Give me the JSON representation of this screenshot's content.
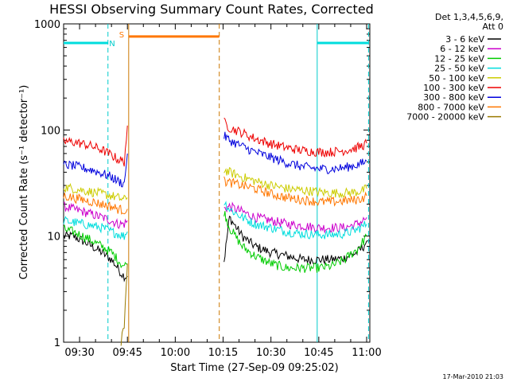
{
  "chart_data": {
    "type": "line",
    "title": "HESSI Observing Summary Count Rates, Corrected",
    "xlabel": "Start Time (27-Sep-09 09:25:02)",
    "ylabel": "Corrected Count Rate (s⁻¹ detector⁻¹)",
    "x_unit": "minutes after 09:25:02",
    "xlim": [
      0,
      96
    ],
    "ylim": [
      1,
      1000
    ],
    "yscale": "log",
    "x_ticks": [
      {
        "x": 5,
        "label": "09:30"
      },
      {
        "x": 20,
        "label": "09:45"
      },
      {
        "x": 35,
        "label": "10:00"
      },
      {
        "x": 50,
        "label": "10:15"
      },
      {
        "x": 65,
        "label": "10:30"
      },
      {
        "x": 80,
        "label": "10:45"
      },
      {
        "x": 95,
        "label": "11:00"
      }
    ],
    "y_ticks": [
      {
        "y": 1,
        "label": "1"
      },
      {
        "y": 10,
        "label": "10"
      },
      {
        "y": 100,
        "label": "100"
      },
      {
        "y": 1000,
        "label": "1000"
      }
    ],
    "legend_title": [
      "Det 1,3,4,5,6,9,",
      "Att 0"
    ],
    "legend_position": "right",
    "series": [
      {
        "name": "3 - 6 keV",
        "color": "#000000",
        "x": [
          0,
          3,
          6,
          9,
          12,
          15,
          17,
          18,
          19,
          20,
          50.3,
          52,
          56,
          60,
          65,
          70,
          75,
          80,
          84,
          88,
          92,
          94,
          95
        ],
        "y": [
          10,
          10,
          9,
          8,
          7,
          6,
          5,
          4.5,
          4.2,
          4.2,
          5.8,
          15,
          10,
          8,
          7,
          6.5,
          6,
          6,
          6,
          6.2,
          7,
          8,
          9
        ]
      },
      {
        "name": "6 - 12 keV",
        "color": "#cc00cc",
        "x": [
          0,
          3,
          6,
          9,
          12,
          15,
          17,
          19,
          20,
          50.3,
          52,
          56,
          60,
          65,
          70,
          75,
          80,
          84,
          88,
          92,
          94,
          95
        ],
        "y": [
          19,
          18,
          17,
          16,
          15,
          14,
          13,
          13,
          14,
          18,
          19,
          17,
          15,
          14,
          13,
          12.5,
          12,
          12,
          12,
          13,
          14,
          15
        ]
      },
      {
        "name": "12 - 25 keV",
        "color": "#00cc00",
        "x": [
          0,
          3,
          6,
          9,
          12,
          15,
          17,
          18,
          19,
          20,
          50.3,
          52,
          56,
          60,
          65,
          70,
          75,
          80,
          84,
          88,
          92,
          94,
          95
        ],
        "y": [
          11.5,
          11,
          10,
          9,
          8,
          7,
          6,
          5.5,
          5.2,
          5.5,
          17,
          12,
          8,
          6.5,
          5.5,
          5,
          5,
          5,
          5.2,
          6,
          7.5,
          9,
          10
        ]
      },
      {
        "name": "25 - 50 keV",
        "color": "#00dddd",
        "x": [
          0,
          3,
          6,
          9,
          12,
          15,
          17,
          19,
          20,
          50.3,
          52,
          56,
          60,
          65,
          70,
          75,
          80,
          84,
          88,
          92,
          94,
          95
        ],
        "y": [
          14,
          13.5,
          13,
          12.5,
          12,
          11,
          10.5,
          10,
          11,
          21,
          18,
          15,
          13,
          12,
          11,
          10.5,
          10.3,
          10.3,
          10.5,
          11.5,
          12.5,
          13
        ]
      },
      {
        "name": "50 - 100 keV",
        "color": "#cccc00",
        "x": [
          0,
          3,
          6,
          9,
          12,
          15,
          17,
          19,
          20,
          50.3,
          52,
          56,
          60,
          65,
          70,
          75,
          80,
          84,
          88,
          92,
          94,
          95
        ],
        "y": [
          29,
          28,
          27,
          26,
          25,
          24,
          23,
          22,
          23,
          42,
          40,
          36,
          33,
          30,
          28,
          27,
          26,
          25.5,
          25.5,
          26,
          27,
          28
        ]
      },
      {
        "name": "100 - 300 keV",
        "color": "#ee0000",
        "x": [
          0,
          3,
          6,
          9,
          12,
          15,
          17,
          19,
          20,
          50.3,
          52,
          56,
          60,
          65,
          70,
          75,
          80,
          84,
          88,
          92,
          94,
          95
        ],
        "y": [
          78,
          77,
          74,
          70,
          65,
          58,
          53,
          50,
          110,
          118,
          105,
          94,
          83,
          74,
          68,
          64,
          62,
          62,
          64,
          68,
          72,
          75
        ]
      },
      {
        "name": "300 - 800 keV",
        "color": "#0000dd",
        "x": [
          0,
          3,
          6,
          9,
          12,
          15,
          17,
          19,
          20,
          50.3,
          52,
          56,
          60,
          65,
          70,
          75,
          80,
          84,
          88,
          92,
          94,
          95
        ],
        "y": [
          47,
          46,
          44,
          42,
          39,
          36,
          33,
          31,
          60,
          88,
          80,
          70,
          62,
          55,
          49,
          45,
          43,
          43,
          44,
          47,
          49,
          51
        ]
      },
      {
        "name": "800 - 7000 keV",
        "color": "#ff7700",
        "x": [
          0,
          3,
          6,
          9,
          12,
          15,
          17,
          19,
          20,
          50.3,
          52,
          56,
          60,
          65,
          70,
          75,
          80,
          84,
          88,
          92,
          94,
          95
        ],
        "y": [
          24,
          23,
          22,
          21,
          20,
          19,
          18,
          17.5,
          18,
          33,
          32,
          30,
          28,
          25,
          23,
          22,
          21,
          21,
          21.5,
          22,
          23,
          24
        ]
      },
      {
        "name": "7000 - 20000 keV",
        "color": "#9a7a00",
        "x": [
          18,
          19,
          19.6,
          20
        ],
        "y": [
          1,
          1.5,
          3,
          5.5
        ]
      }
    ],
    "annotations": [
      {
        "type": "vline",
        "x": 13.9,
        "color": "#00cccc",
        "style": "dashed"
      },
      {
        "type": "vline",
        "x": 79.5,
        "color": "#00cccc",
        "style": "solid"
      },
      {
        "type": "vline",
        "x": 95.6,
        "color": "#00cccc",
        "style": "dashed"
      },
      {
        "type": "vline",
        "x": 20.4,
        "color": "#cc7700",
        "style": "solid"
      },
      {
        "type": "vline",
        "x": 48.8,
        "color": "#cc7700",
        "style": "dashed"
      },
      {
        "type": "hbar",
        "x_from": 0,
        "x_to": 13.9,
        "y": 660,
        "color": "#00dddd"
      },
      {
        "type": "hbar",
        "x_from": 79.5,
        "x_to": 95.6,
        "y": 660,
        "color": "#00dddd"
      },
      {
        "type": "hbar",
        "x_from": 20.4,
        "x_to": 48.8,
        "y": 760,
        "color": "#ff7700"
      },
      {
        "type": "label",
        "text": "N",
        "x": 15.2,
        "y": 660,
        "color": "#00cccc"
      },
      {
        "type": "label",
        "text": "S",
        "x": 18.2,
        "y": 800,
        "color": "#ff7700"
      }
    ]
  },
  "timestamp": "17-Mar-2010 21:03"
}
